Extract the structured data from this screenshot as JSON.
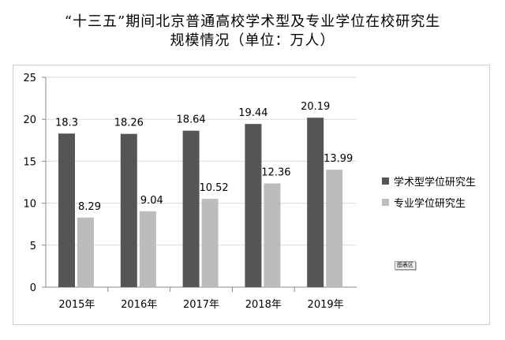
{
  "title_line1": "“十三五”期间北京普通高校学术型及专业学位在校研究生",
  "title_line2": "规模情况（单位：万人）",
  "badge": "图表区",
  "colors": {
    "academic": "#555555",
    "professional": "#bcbcbc",
    "axis": "#888888",
    "grid": "#dcdcdc"
  },
  "chart_data": {
    "type": "bar",
    "categories": [
      "2015年",
      "2016年",
      "2017年",
      "2018年",
      "2019年"
    ],
    "series": [
      {
        "name": "学术型学位研究生",
        "values": [
          18.3,
          18.26,
          18.64,
          19.44,
          20.19
        ],
        "labels": [
          "18.3",
          "18.26",
          "18.64",
          "19.44",
          "20.19"
        ]
      },
      {
        "name": "专业学位研究生",
        "values": [
          8.29,
          9.04,
          10.52,
          12.36,
          13.99
        ],
        "labels": [
          "8.29",
          "9.04",
          "10.52",
          "12.36",
          "13.99"
        ]
      }
    ],
    "ylim": [
      0,
      25
    ],
    "yticks": [
      0,
      5,
      10,
      15,
      20,
      25
    ],
    "grid": true,
    "legend": "right"
  }
}
